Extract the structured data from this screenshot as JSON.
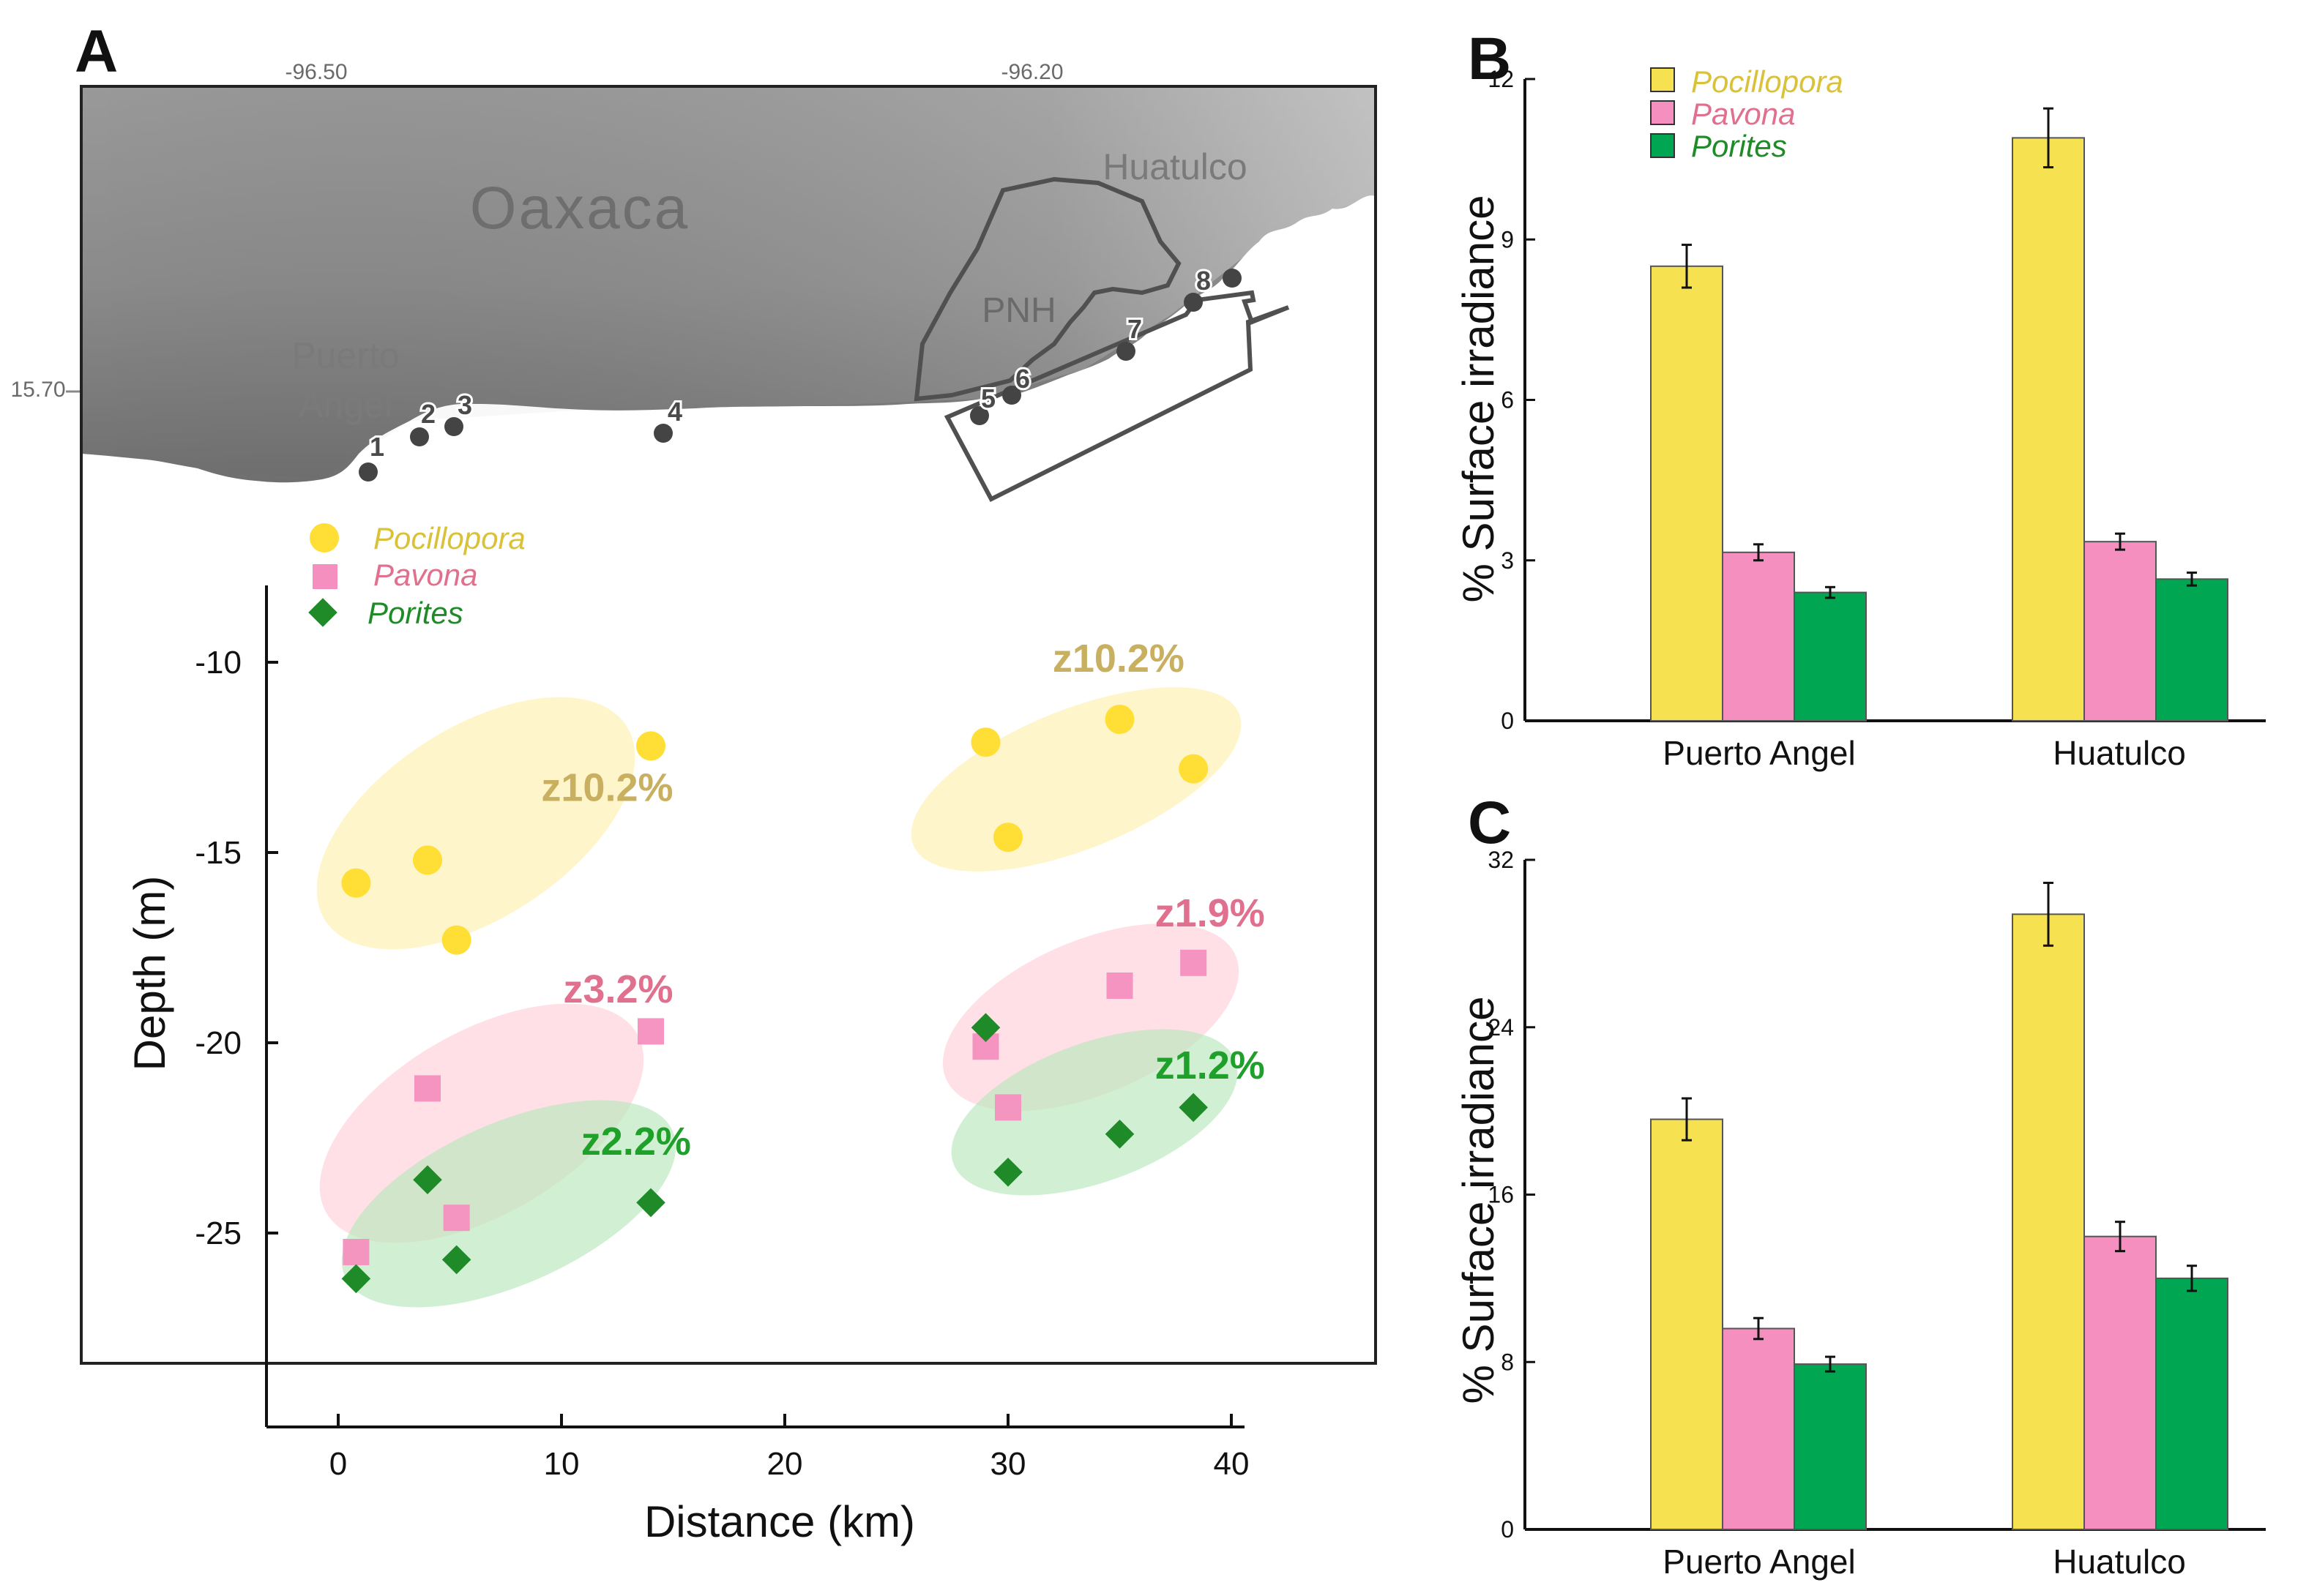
{
  "colors": {
    "pocillopora": "#F6E250",
    "pocillopora_marker": "#FFDE35",
    "pavona": "#F58FBF",
    "porites": "#00A651",
    "porites_marker": "#1E8A28",
    "z_pocillopora": "#C8B060",
    "z_pavona": "#E0708E",
    "z_porites": "#1FA02A",
    "ellipse_pocillopora": "#FFF6C8",
    "ellipse_pavona": "#FFDDE4",
    "ellipse_porites": "#C2ECC4",
    "land_dark": "#777777",
    "land_light": "#DCDCDC"
  },
  "map": {
    "panel_label": "A",
    "lon_labels": [
      "-96.50",
      "-96.20"
    ],
    "lat_label": "15.70",
    "region_label": "Oaxaca",
    "place_huatulco": "Huatulco",
    "place_puerto": "Puerto",
    "place_angel": "Angel",
    "park_label": "PNH",
    "sites": [
      "1",
      "2",
      "3",
      "4",
      "5",
      "6",
      "7",
      "8"
    ]
  },
  "legend": {
    "pocillopora": "Pocillopora",
    "pavona": "Pavona",
    "porites": "Porites"
  },
  "chart_data": [
    {
      "panel": "A",
      "type": "scatter",
      "xlabel": "Distance (km)",
      "ylabel": "Depth (m)",
      "xlim": [
        -3,
        40
      ],
      "ylim": [
        -29.8,
        -8
      ],
      "x_ticks": [
        "0",
        "10",
        "20",
        "30",
        "40"
      ],
      "y_ticks": [
        "-10",
        "-15",
        "-20",
        "-25"
      ],
      "series": [
        {
          "name": "Pocillopora",
          "marker": "circle",
          "points": [
            [
              0.8,
              -15.8
            ],
            [
              4,
              -15.2
            ],
            [
              5.3,
              -17.3
            ],
            [
              14,
              -12.2
            ],
            [
              29,
              -12.1
            ],
            [
              30,
              -14.6
            ],
            [
              35,
              -11.5
            ],
            [
              38.3,
              -12.8
            ]
          ]
        },
        {
          "name": "Pavona",
          "marker": "square",
          "points": [
            [
              0.8,
              -25.5
            ],
            [
              4,
              -21.2
            ],
            [
              5.3,
              -24.6
            ],
            [
              14,
              -19.7
            ],
            [
              29,
              -20.1
            ],
            [
              30,
              -21.7
            ],
            [
              35,
              -18.5
            ],
            [
              38.3,
              -17.9
            ]
          ]
        },
        {
          "name": "Porites",
          "marker": "diamond",
          "points": [
            [
              0.8,
              -26.2
            ],
            [
              4,
              -23.6
            ],
            [
              5.3,
              -25.7
            ],
            [
              14,
              -24.2
            ],
            [
              29,
              -19.6
            ],
            [
              30,
              -23.4
            ],
            [
              35,
              -22.4
            ],
            [
              38.3,
              -21.7
            ]
          ]
        }
      ],
      "annotations": [
        {
          "text": "z10.2%",
          "species": "pocillopora",
          "x": 15,
          "y": -13.3
        },
        {
          "text": "z3.2%",
          "species": "pavona",
          "x": 15,
          "y": -18.6
        },
        {
          "text": "z2.2%",
          "species": "porites",
          "x": 15.8,
          "y": -22.6
        },
        {
          "text": "z10.2%",
          "species": "pocillopora",
          "x": 37.9,
          "y": -9.9
        },
        {
          "text": "z1.9%",
          "species": "pavona",
          "x": 41.5,
          "y": -16.6
        },
        {
          "text": "z1.2%",
          "species": "porites",
          "x": 41.5,
          "y": -20.6
        }
      ]
    },
    {
      "panel": "B",
      "type": "bar",
      "ylabel": "% Surface irradiance",
      "ylim": [
        0,
        12
      ],
      "y_ticks": [
        "0",
        "3",
        "6",
        "9",
        "12"
      ],
      "categories": [
        "Puerto Angel",
        "Huatulco"
      ],
      "series": [
        {
          "name": "Pocillopora",
          "values": [
            8.5,
            10.9
          ],
          "errors": [
            0.4,
            0.55
          ]
        },
        {
          "name": "Pavona",
          "values": [
            3.15,
            3.35
          ],
          "errors": [
            0.15,
            0.15
          ]
        },
        {
          "name": "Porites",
          "values": [
            2.4,
            2.65
          ],
          "errors": [
            0.1,
            0.12
          ]
        }
      ]
    },
    {
      "panel": "C",
      "type": "bar",
      "ylabel": "% Surface irradiance",
      "ylim": [
        0,
        32
      ],
      "y_ticks": [
        "0",
        "8",
        "16",
        "24",
        "32"
      ],
      "categories": [
        "Puerto Angel",
        "Huatulco"
      ],
      "series": [
        {
          "name": "Pocillopora",
          "values": [
            19.6,
            29.4
          ],
          "errors": [
            1.0,
            1.5
          ]
        },
        {
          "name": "Pavona",
          "values": [
            9.6,
            14.0
          ],
          "errors": [
            0.5,
            0.7
          ]
        },
        {
          "name": "Porites",
          "values": [
            7.9,
            12.0
          ],
          "errors": [
            0.35,
            0.6
          ]
        }
      ]
    }
  ]
}
